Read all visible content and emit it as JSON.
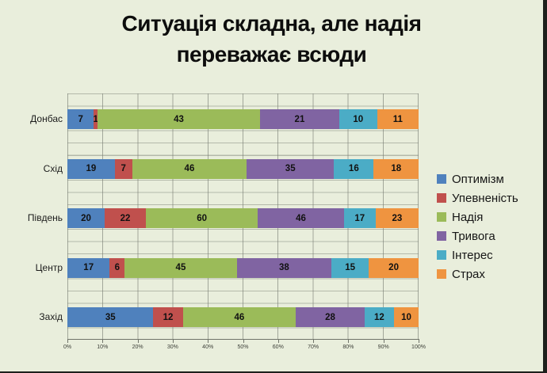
{
  "slide": {
    "title": "Ситуація складна, але надія переважає всюди",
    "title_lines": [
      "Ситуація складна, але надія",
      "переважає всюди"
    ],
    "background_color": "#e9eedc",
    "frame_color": "#1d201c"
  },
  "chart_data": {
    "type": "bar",
    "stacked": true,
    "normalized_to_100_percent": true,
    "orientation": "horizontal",
    "title": "Ситуація складна, але надія переважає всюди",
    "categories": [
      "Донбас",
      "Схід",
      "Південь",
      "Центр",
      "Захід"
    ],
    "series": [
      {
        "name": "Оптимізм",
        "color": "#4f81bd",
        "values": [
          7,
          19,
          20,
          17,
          35
        ]
      },
      {
        "name": "Упевненість",
        "color": "#c0504d",
        "values": [
          1,
          7,
          22,
          6,
          12
        ]
      },
      {
        "name": "Надія",
        "color": "#9bbb59",
        "values": [
          43,
          46,
          60,
          45,
          46
        ]
      },
      {
        "name": "Тривога",
        "color": "#8064a2",
        "values": [
          21,
          35,
          46,
          38,
          28
        ]
      },
      {
        "name": "Інтерес",
        "color": "#4bacc6",
        "values": [
          10,
          16,
          17,
          15,
          12
        ]
      },
      {
        "name": "Страх",
        "color": "#ef9440",
        "values": [
          11,
          18,
          23,
          20,
          10
        ]
      }
    ],
    "x_ticks": [
      "0%",
      "10%",
      "20%",
      "30%",
      "40%",
      "50%",
      "60%",
      "70%",
      "80%",
      "90%",
      "100%"
    ],
    "xlim": [
      0,
      100
    ],
    "grid": true,
    "legend_position": "right",
    "data_labels": "shown_inside_segments"
  }
}
